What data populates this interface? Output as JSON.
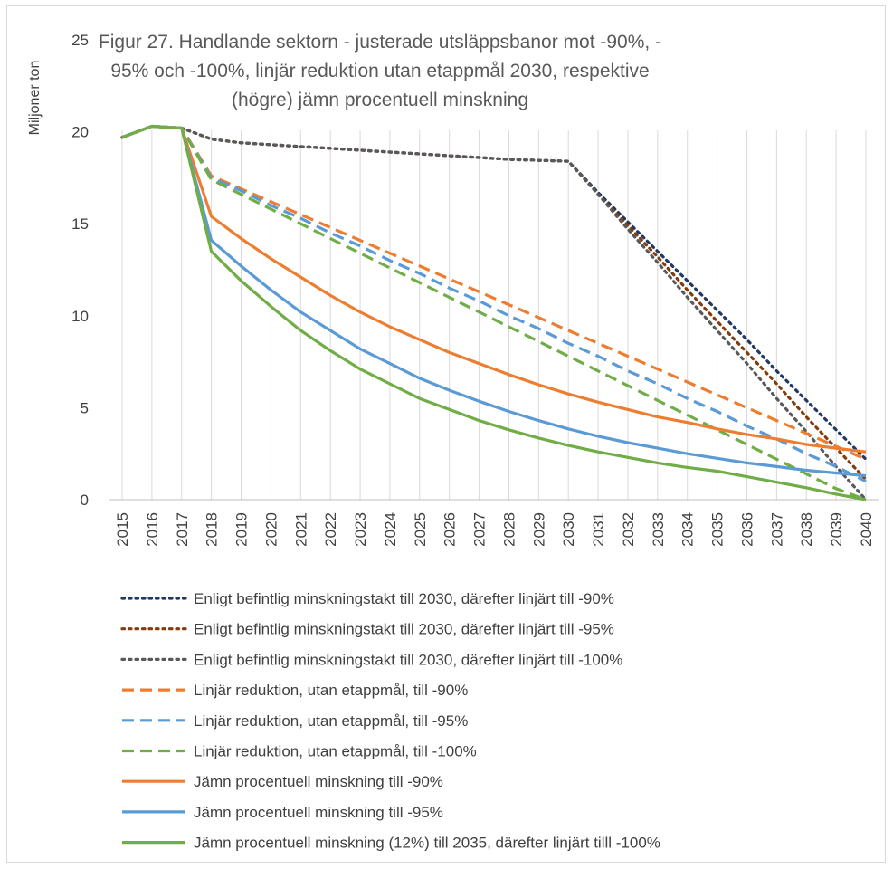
{
  "chart_data": {
    "type": "line",
    "title": "Figur 27. Handlande sektorn - justerade utsläppsbanor mot -90%, -95% och -100%, linjär reduktion utan etappmål 2030, respektive (högre) jämn procentuell minskning",
    "title_lines": [
      "Figur 27. Handlande sektorn - justerade utsläppsbanor mot -90%, -",
      "95% och -100%, linjär reduktion utan etappmål 2030, respektive",
      "(högre) jämn procentuell minskning"
    ],
    "ylabel": "Miljoner ton",
    "xlabel": "",
    "ylim": [
      0,
      25
    ],
    "y_ticks": [
      "0",
      "5",
      "10",
      "15",
      "20",
      "25"
    ],
    "x": [
      "2015",
      "2016",
      "2017",
      "2018",
      "2019",
      "2020",
      "2021",
      "2022",
      "2023",
      "2024",
      "2025",
      "2026",
      "2027",
      "2028",
      "2029",
      "2030",
      "2031",
      "2032",
      "2033",
      "2034",
      "2035",
      "2036",
      "2037",
      "2038",
      "2039",
      "2040"
    ],
    "grid": "vertical",
    "legend_position": "bottom",
    "series": [
      {
        "name": "Enligt befintlig minskningstakt till 2030, därefter linjärt till -90%",
        "color": "#1f3864",
        "style": "dotted",
        "values": [
          19.7,
          20.3,
          20.2,
          19.6,
          19.4,
          19.3,
          19.2,
          19.1,
          19.0,
          18.9,
          18.8,
          18.7,
          18.6,
          18.5,
          18.45,
          18.4,
          16.7,
          15.1,
          13.5,
          11.9,
          10.3,
          8.7,
          7.0,
          5.4,
          3.8,
          2.2
        ]
      },
      {
        "name": "Enligt befintlig minskningstakt till 2030, därefter linjärt till -95%",
        "color": "#843c0c",
        "style": "dotted",
        "values": [
          19.7,
          20.3,
          20.2,
          19.6,
          19.4,
          19.3,
          19.2,
          19.1,
          19.0,
          18.9,
          18.8,
          18.7,
          18.6,
          18.5,
          18.45,
          18.4,
          16.6,
          14.9,
          13.2,
          11.4,
          9.7,
          8.0,
          6.3,
          4.5,
          2.8,
          1.1
        ]
      },
      {
        "name": "Enligt befintlig minskningstakt till 2030, därefter linjärt till -100%",
        "color": "#595959",
        "style": "dotted",
        "values": [
          19.7,
          20.3,
          20.2,
          19.6,
          19.4,
          19.3,
          19.2,
          19.1,
          19.0,
          18.9,
          18.8,
          18.7,
          18.6,
          18.5,
          18.45,
          18.4,
          16.6,
          14.7,
          12.9,
          11.0,
          9.2,
          7.4,
          5.5,
          3.7,
          1.8,
          0.0
        ]
      },
      {
        "name": "Linjär reduktion, utan etappmål, till -90%",
        "color": "#ed7d31",
        "style": "dashed",
        "values": [
          19.7,
          20.3,
          20.2,
          17.6,
          16.9,
          16.2,
          15.5,
          14.8,
          14.1,
          13.4,
          12.7,
          12.0,
          11.3,
          10.6,
          9.9,
          9.2,
          8.5,
          7.8,
          7.1,
          6.4,
          5.7,
          5.0,
          4.3,
          3.6,
          2.9,
          2.2
        ]
      },
      {
        "name": "Linjär reduktion, utan etappmål, till -95%",
        "color": "#5b9bd5",
        "style": "dashed",
        "values": [
          19.7,
          20.3,
          20.2,
          17.5,
          16.8,
          16.0,
          15.3,
          14.5,
          13.8,
          13.0,
          12.3,
          11.5,
          10.8,
          10.0,
          9.3,
          8.5,
          7.8,
          7.0,
          6.3,
          5.5,
          4.8,
          4.0,
          3.3,
          2.5,
          1.8,
          1.0
        ]
      },
      {
        "name": "Linjär reduktion, utan etappmål, till -100%",
        "color": "#70ad47",
        "style": "dashed",
        "values": [
          19.7,
          20.3,
          20.2,
          17.4,
          16.6,
          15.8,
          15.0,
          14.2,
          13.4,
          12.6,
          11.8,
          11.0,
          10.2,
          9.4,
          8.6,
          7.8,
          7.0,
          6.2,
          5.4,
          4.6,
          3.8,
          3.0,
          2.2,
          1.4,
          0.6,
          0.0
        ]
      },
      {
        "name": "Jämn procentuell minskning till -90%",
        "color": "#ed7d31",
        "style": "solid",
        "values": [
          19.7,
          20.3,
          20.2,
          15.4,
          14.2,
          13.1,
          12.1,
          11.1,
          10.2,
          9.4,
          8.7,
          8.0,
          7.4,
          6.8,
          6.25,
          5.75,
          5.3,
          4.9,
          4.5,
          4.2,
          3.85,
          3.55,
          3.3,
          3.0,
          2.8,
          2.6
        ]
      },
      {
        "name": "Jämn procentuell minskning till -95%",
        "color": "#5b9bd5",
        "style": "solid",
        "values": [
          19.7,
          20.3,
          20.2,
          14.1,
          12.7,
          11.4,
          10.2,
          9.2,
          8.2,
          7.4,
          6.6,
          5.95,
          5.35,
          4.8,
          4.3,
          3.85,
          3.45,
          3.1,
          2.8,
          2.5,
          2.25,
          2.0,
          1.8,
          1.6,
          1.45,
          1.3
        ]
      },
      {
        "name": "Jämn procentuell minskning (12%) till 2035, därefter linjärt tilll -100%",
        "color": "#70ad47",
        "style": "solid",
        "values": [
          19.7,
          20.3,
          20.2,
          13.5,
          11.9,
          10.5,
          9.2,
          8.1,
          7.1,
          6.3,
          5.5,
          4.9,
          4.3,
          3.8,
          3.35,
          2.95,
          2.6,
          2.3,
          2.0,
          1.75,
          1.55,
          1.25,
          0.95,
          0.65,
          0.3,
          0.0
        ]
      }
    ]
  }
}
